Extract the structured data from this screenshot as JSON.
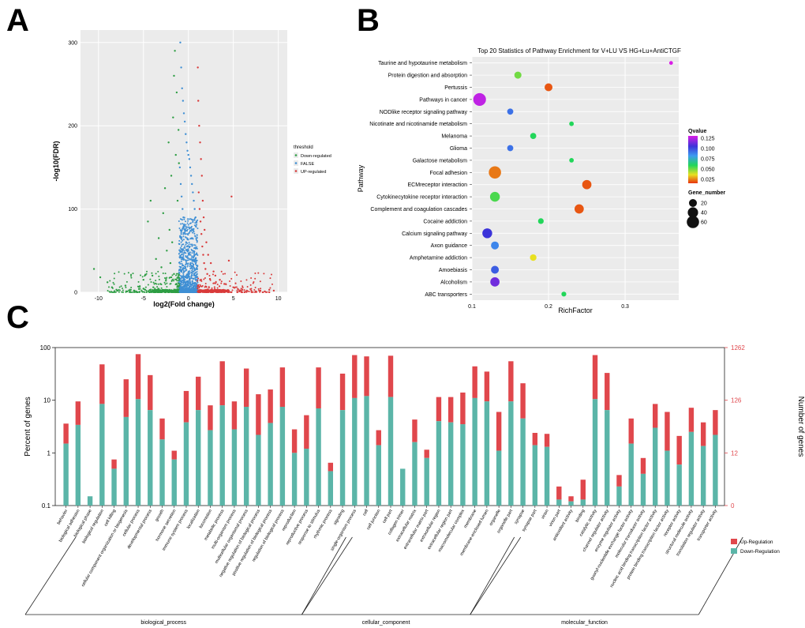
{
  "figure": {
    "panel_labels": [
      "A",
      "B",
      "C"
    ],
    "colors": {
      "down": "#2e9e44",
      "neutral": "#3f8fd4",
      "up": "#d93a3a",
      "go_up": "#e0474c",
      "go_down": "#5bb5a8",
      "right_axis": "#e0474c"
    }
  },
  "chart_data": [
    {
      "id": "volcano",
      "type": "scatter",
      "title": "",
      "xlabel": "log2(Fold change)",
      "ylabel": "-log10(FDR)",
      "xlim": [
        -12,
        11
      ],
      "ylim": [
        0,
        315
      ],
      "x_ticks": [
        -10,
        -5,
        0,
        5,
        10
      ],
      "y_ticks": [
        0,
        100,
        200,
        300
      ],
      "grid": true,
      "legend": {
        "title": "threshold",
        "position": "right",
        "entries": [
          {
            "label": "Down-regulated",
            "color": "#2e9e44"
          },
          {
            "label": "FALSE",
            "color": "#3f8fd4"
          },
          {
            "label": "UP-regulated",
            "color": "#d93a3a"
          }
        ]
      },
      "series": [
        {
          "name": "Down-regulated",
          "color": "#2e9e44",
          "points": [
            [
              -10.5,
              28
            ],
            [
              -9.8,
              18
            ],
            [
              -9,
              12
            ],
            [
              -8.5,
              6
            ],
            [
              -8,
              3
            ],
            [
              -7,
              8
            ],
            [
              -6.5,
              3
            ],
            [
              -6,
              2
            ],
            [
              -5.5,
              4
            ],
            [
              -5,
              15
            ],
            [
              -4.5,
              85
            ],
            [
              -4.2,
              110
            ],
            [
              -4,
              20
            ],
            [
              -3.6,
              40
            ],
            [
              -3.3,
              65
            ],
            [
              -3,
              30
            ],
            [
              -2.8,
              95
            ],
            [
              -2.6,
              125
            ],
            [
              -2.4,
              50
            ],
            [
              -2.2,
              180
            ],
            [
              -2.1,
              75
            ],
            [
              -2,
              35
            ],
            [
              -1.9,
              140
            ],
            [
              -1.8,
              60
            ],
            [
              -1.7,
              210
            ],
            [
              -1.6,
              260
            ],
            [
              -1.5,
              290
            ],
            [
              -1.4,
              165
            ],
            [
              -1.3,
              240
            ],
            [
              -1.2,
              110
            ],
            [
              -1.1,
              195
            ],
            [
              -1.05,
              155
            ],
            [
              -6.8,
              1
            ],
            [
              -5.8,
              1
            ],
            [
              -4.8,
              3
            ],
            [
              -3.9,
              6
            ],
            [
              -3.1,
              10
            ],
            [
              -2.5,
              14
            ],
            [
              -1.9,
              18
            ],
            [
              -1.6,
              22
            ]
          ]
        },
        {
          "name": "FALSE",
          "color": "#3f8fd4",
          "points": [
            [
              -0.9,
              300
            ],
            [
              -0.8,
              270
            ],
            [
              -0.7,
              245
            ],
            [
              -0.6,
              230
            ],
            [
              -0.5,
              215
            ],
            [
              -0.4,
              205
            ],
            [
              -0.3,
              190
            ],
            [
              -0.2,
              180
            ],
            [
              -0.1,
              170
            ],
            [
              0,
              165
            ],
            [
              0.1,
              160
            ],
            [
              0.2,
              150
            ],
            [
              0.3,
              140
            ],
            [
              0.4,
              130
            ],
            [
              0.5,
              120
            ],
            [
              0.6,
              110
            ],
            [
              0.7,
              100
            ],
            [
              0.8,
              90
            ],
            [
              0.9,
              85
            ],
            [
              -0.95,
              150
            ],
            [
              -0.85,
              130
            ],
            [
              -0.75,
              115
            ],
            [
              -0.65,
              100
            ],
            [
              -0.55,
              90
            ],
            [
              -0.45,
              80
            ],
            [
              -0.35,
              70
            ],
            [
              -0.25,
              60
            ],
            [
              -0.15,
              55
            ],
            [
              -0.05,
              50
            ],
            [
              0.05,
              45
            ],
            [
              0.15,
              40
            ],
            [
              0.25,
              35
            ],
            [
              0.35,
              30
            ],
            [
              0.45,
              28
            ],
            [
              0.55,
              25
            ],
            [
              0.65,
              22
            ],
            [
              0.75,
              20
            ],
            [
              0.85,
              18
            ]
          ]
        },
        {
          "name": "UP-regulated",
          "color": "#d93a3a",
          "points": [
            [
              1.05,
              270
            ],
            [
              1.1,
              230
            ],
            [
              1.2,
              200
            ],
            [
              1.3,
              180
            ],
            [
              1.4,
              160
            ],
            [
              1.5,
              140
            ],
            [
              1.6,
              110
            ],
            [
              1.7,
              90
            ],
            [
              1.8,
              75
            ],
            [
              2,
              60
            ],
            [
              2.2,
              45
            ],
            [
              2.5,
              35
            ],
            [
              2.8,
              25
            ],
            [
              3,
              20
            ],
            [
              3.5,
              15
            ],
            [
              4,
              10
            ],
            [
              4.5,
              38
            ],
            [
              4.8,
              115
            ],
            [
              5,
              6
            ],
            [
              5.5,
              4
            ],
            [
              6,
              3
            ],
            [
              6.5,
              2
            ],
            [
              7,
              2
            ],
            [
              7.5,
              1
            ],
            [
              8,
              2
            ],
            [
              8.5,
              1
            ],
            [
              9,
              3
            ],
            [
              9.5,
              2
            ],
            [
              1.15,
              120
            ],
            [
              1.25,
              100
            ],
            [
              1.35,
              85
            ],
            [
              1.45,
              70
            ],
            [
              1.55,
              55
            ],
            [
              1.65,
              45
            ],
            [
              1.75,
              35
            ],
            [
              1.9,
              28
            ],
            [
              2.1,
              22
            ],
            [
              2.4,
              16
            ]
          ]
        }
      ]
    },
    {
      "id": "kegg-bubble",
      "type": "scatter",
      "title": "Top 20 Statistics of Pathway Enrichment for V+LU VS HG+Lu+AntiCTGF",
      "xlabel": "RichFactor",
      "ylabel": "Pathway",
      "xlim": [
        0.1,
        0.37
      ],
      "x_ticks": [
        0.1,
        0.2,
        0.3
      ],
      "grid": true,
      "legend": {
        "color_title": "Qvalue",
        "color_ticks": [
          0.125,
          0.1,
          0.075,
          0.05,
          0.025
        ],
        "size_title": "Gene_number",
        "size_entries": [
          20,
          40,
          60
        ],
        "position": "right"
      },
      "categories": [
        "Taurine and hypotaurine metabolism",
        "Protein digestion and absorption",
        "Pertussis",
        "Pathways in cancer",
        "NODlike receptor signaling pathway",
        "Nicotinate and nicotinamide metabolism",
        "Melanoma",
        "Glioma",
        "Galactose metabolism",
        "Focal adhesion",
        "ECMreceptor interaction",
        "Cytokinecytokine receptor interaction",
        "Complement and coagulation cascades",
        "Cocaine addiction",
        "Calcium signaling pathway",
        "Axon guidance",
        "Amphetamine addiction",
        "Amoebiasis",
        "Alcoholism",
        "ABC transporters"
      ],
      "rich_factor": [
        0.36,
        0.16,
        0.2,
        0.11,
        0.15,
        0.23,
        0.18,
        0.15,
        0.23,
        0.13,
        0.25,
        0.13,
        0.24,
        0.19,
        0.12,
        0.13,
        0.18,
        0.13,
        0.13,
        0.22
      ],
      "qvalue": [
        0.13,
        0.04,
        0.005,
        0.125,
        0.085,
        0.05,
        0.05,
        0.085,
        0.05,
        0.01,
        0.005,
        0.045,
        0.005,
        0.05,
        0.1,
        0.08,
        0.025,
        0.09,
        0.11,
        0.05
      ],
      "gene_number": [
        2,
        15,
        20,
        65,
        10,
        4,
        10,
        10,
        4,
        60,
        30,
        35,
        30,
        8,
        35,
        20,
        12,
        20,
        30,
        5
      ]
    },
    {
      "id": "go-bar",
      "type": "bar",
      "title": "",
      "ylabel": "Percent of genes",
      "ylabel_right": "Number of genes",
      "y_scale": "log",
      "ylim": [
        0.1,
        100
      ],
      "y_ticks": [
        "100",
        "10",
        "1",
        "0.1"
      ],
      "y_ticks_right": [
        "1262",
        "126",
        "12",
        "0"
      ],
      "legend": {
        "position": "right",
        "entries": [
          {
            "label": "Up-Regulation",
            "color": "#e0474c"
          },
          {
            "label": "Down-Regulation",
            "color": "#5bb5a8"
          }
        ]
      },
      "groups": [
        {
          "label": "biological_process",
          "start": 0,
          "end": 22
        },
        {
          "label": "cellular_component",
          "start": 23,
          "end": 36
        },
        {
          "label": "molecular_function",
          "start": 37,
          "end": 55
        }
      ],
      "categories": [
        "behavior",
        "biological adhesion",
        "biological phase",
        "biological regulation",
        "cell killing",
        "cellular component organization or biogenesis",
        "cellular process",
        "developmental process",
        "growth",
        "hormone secretion",
        "immune system process",
        "localization",
        "locomotion",
        "metabolic process",
        "multi-organism process",
        "multicellular organismal process",
        "negative regulation of biological process",
        "positive regulation of biological process",
        "regulation of biological process",
        "reproduction",
        "reproductive process",
        "response to stimulus",
        "rhythmic process",
        "signaling",
        "single-organism process",
        "cell",
        "cell junction",
        "cell part",
        "collagen trimer",
        "extracellular matrix",
        "extracellular matrix part",
        "extracellular region",
        "extracellular region part",
        "macromolecular complex",
        "membrane",
        "membrane-enclosed lumen",
        "organelle",
        "organelle part",
        "synapse",
        "synapse part",
        "virion",
        "virion part",
        "antioxidant activity",
        "binding",
        "catalytic activity",
        "channel regulator activity",
        "enzyme regulator activity",
        "guanyl-nucleotide exchange factor activity",
        "molecular transducer activity",
        "nucleic acid binding transcription factor activity",
        "protein binding transcription factor activity",
        "receptor activity",
        "structural molecule activity",
        "translation regulator activity",
        "transporter activity"
      ],
      "series": [
        {
          "name": "Up-Regulation",
          "values": [
            3.6,
            9.5,
            0.15,
            48,
            0.75,
            25,
            75,
            30,
            4.5,
            1.1,
            15,
            28,
            8,
            55,
            9.5,
            40,
            13,
            16,
            42,
            2.8,
            5.2,
            42,
            0.65,
            32,
            72,
            68,
            2.7,
            70,
            0.5,
            4.3,
            1.15,
            11.5,
            11.5,
            14,
            44,
            35,
            6,
            55,
            21,
            2.4,
            2.3,
            0.23,
            0.15,
            0.31,
            72,
            33,
            0.38,
            4.5,
            0.8,
            8.5,
            6,
            2.1,
            7.2,
            3.8,
            6.5
          ]
        },
        {
          "name": "Down-Regulation",
          "values": [
            1.5,
            3.4,
            0.15,
            8.5,
            0.5,
            4.8,
            10.5,
            6.5,
            1.8,
            0.75,
            3.8,
            6.5,
            2.7,
            8,
            2.8,
            7.5,
            2.2,
            3.7,
            7.5,
            1,
            1.2,
            7,
            0.45,
            6.5,
            11,
            12,
            1.4,
            11.5,
            0.5,
            1.6,
            0.8,
            4,
            3.8,
            3.5,
            11,
            9.5,
            1.1,
            9.5,
            4.5,
            1.4,
            1.3,
            0.13,
            0.12,
            0.13,
            10.5,
            6.5,
            0.23,
            1.5,
            0.4,
            3,
            1.1,
            0.6,
            2.5,
            1.35,
            2.2
          ]
        }
      ]
    }
  ]
}
